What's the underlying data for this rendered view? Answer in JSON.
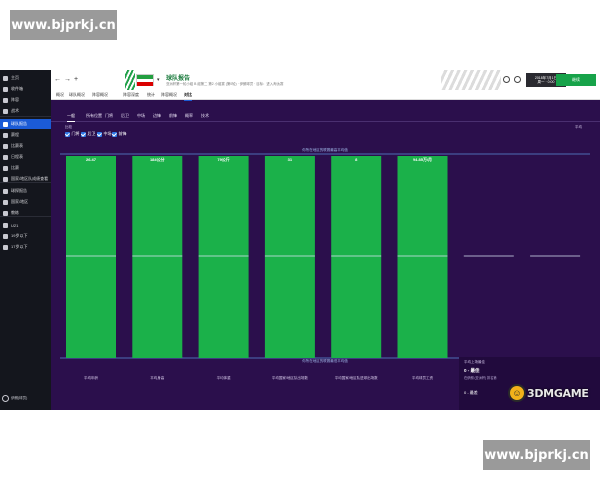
{
  "watermark": {
    "top": "www.bjprkj.cn",
    "bottom": "www.bjprkj.cn"
  },
  "sidebar": {
    "items": [
      {
        "label": "主页",
        "active": false
      },
      {
        "label": "收件箱",
        "active": false
      },
      {
        "label": "阵容",
        "active": false
      },
      {
        "label": "战术",
        "active": false
      },
      {
        "label": "球队报告",
        "active": true
      },
      {
        "label": "赛程",
        "active": false
      },
      {
        "label": "比赛表",
        "active": false
      },
      {
        "label": "日程表",
        "active": false
      },
      {
        "label": "比赛",
        "active": false
      },
      {
        "label": "国家/地区队成绩查看",
        "active": false
      },
      {
        "label": "球探报告",
        "active": false
      },
      {
        "label": "国家/地区",
        "active": false
      },
      {
        "label": "教练",
        "active": false
      },
      {
        "label": "U21",
        "active": false
      },
      {
        "label": "19岁以下",
        "active": false
      },
      {
        "label": "17岁以下",
        "active": false
      }
    ],
    "bottom_label": "伊朗(球员)"
  },
  "header": {
    "title": "球队报告",
    "subtitle": "亚洲杯第一轮小组 B 组第二 第2 小组赛 (第0轮) · 伊朗球员 · 目标：进入淘汰赛",
    "date_line1": "2018年7月1日",
    "date_line2": "周一 · 0:00",
    "continue_label": "继续"
  },
  "tabs": [
    "概况",
    "球队概况",
    "阵容概况",
    "阵容深度",
    "统计",
    "阵容概况",
    "对比"
  ],
  "active_tab": 6,
  "subtabs": [
    "一般",
    "所有位置",
    "门将",
    "后卫",
    "中场",
    "边锋",
    "前锋",
    "概率",
    "技术"
  ],
  "active_subtab": 0,
  "filter": {
    "label": "比较",
    "right_label": "平均"
  },
  "checkboxes": [
    "门将",
    "后卫",
    "中场",
    "前锋"
  ],
  "chart_data": {
    "type": "bar",
    "categories": [
      "平均年龄",
      "平均身高",
      "平均体重",
      "平均国家/地区队出场数",
      "平均国家/地区队进球出场数",
      "平均球员工资"
    ],
    "value_labels": [
      "26.47",
      "184公分",
      "79公斤",
      "31",
      "8",
      "¥4.85万/月"
    ],
    "values": [
      1,
      1,
      1,
      1,
      1,
      1
    ],
    "empty_slots": 2,
    "top_label": "你所在地区的联赛最高平均值",
    "bottom_label": "你所在地区的联赛最低平均值",
    "colors": {
      "bar": "#1bb14a",
      "background": "#2b0f4c",
      "line": "#5a8fd8"
    }
  },
  "info_panel": {
    "title": "平均上场最佳",
    "best": "0 - 最佳",
    "desc": "在伊朗 (亚洲杯) 排名第",
    "worst": "0 - 最差"
  },
  "brand": {
    "text": "3DMGAME"
  }
}
